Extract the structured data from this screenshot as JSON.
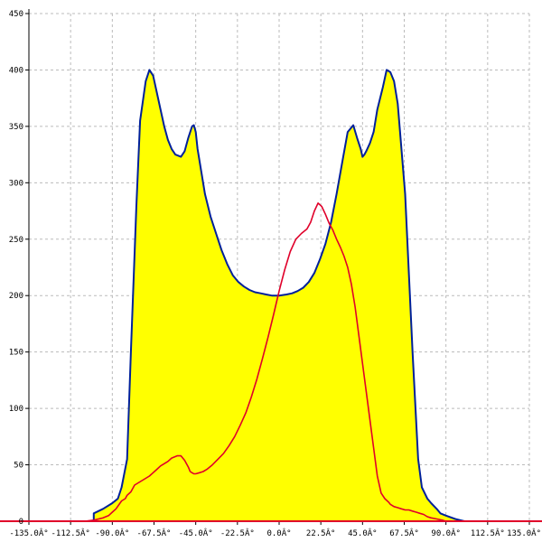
{
  "chart_data": {
    "type": "area",
    "xlim": [
      -135,
      135
    ],
    "ylim": [
      0,
      450
    ],
    "x_ticks": [
      -135,
      -112.5,
      -90,
      -67.5,
      -45,
      -22.5,
      0,
      22.5,
      45,
      67.5,
      90,
      112.5,
      135
    ],
    "x_tick_labels": [
      "-135.0Â°",
      "-112.5Â°",
      "-90.0Â°",
      "-67.5Â°",
      "-45.0Â°",
      "-22.5Â°",
      "0.0Â°",
      "22.5Â°",
      "45.0Â°",
      "67.5Â°",
      "90.0Â°",
      "112.5Â°",
      "135.0Â°"
    ],
    "y_ticks": [
      0,
      50,
      100,
      150,
      200,
      250,
      300,
      350,
      400,
      450
    ],
    "y_tick_labels": [
      "0",
      "50",
      "100",
      "150",
      "200",
      "250",
      "300",
      "350",
      "400",
      "450"
    ],
    "grid": true,
    "colors": {
      "fill": "#ffff00",
      "outline": "#00209a",
      "series2": "#e0002a",
      "baseline": "#e0002a"
    },
    "series": [
      {
        "x": [
          -100,
          -100,
          -95,
          -90,
          -87,
          -85,
          -82,
          -80,
          -77,
          -75,
          -72,
          -70,
          -68,
          -66,
          -64,
          -62,
          -60,
          -58,
          -56,
          -53,
          -51,
          -49,
          -47,
          -46,
          -45,
          -44,
          -42,
          -40,
          -37,
          -34,
          -31,
          -28,
          -25,
          -22,
          -19,
          -16,
          -13,
          -10,
          -7,
          -4,
          0,
          4,
          7,
          10,
          13,
          16,
          19,
          22,
          25,
          28,
          31,
          34,
          37,
          40,
          42,
          44,
          45,
          46,
          47,
          49,
          51,
          53,
          56,
          58,
          60,
          62,
          64,
          66,
          68,
          70,
          72,
          75,
          77,
          80,
          82,
          85,
          87,
          90,
          95,
          100,
          100
        ],
        "values": [
          0,
          7,
          11,
          16,
          20,
          30,
          55,
          150,
          280,
          355,
          390,
          400,
          395,
          380,
          365,
          350,
          338,
          330,
          325,
          323,
          328,
          340,
          350,
          351,
          345,
          330,
          310,
          290,
          270,
          255,
          240,
          228,
          218,
          212,
          208,
          205,
          203,
          202,
          201,
          200,
          200,
          201,
          202,
          204,
          207,
          212,
          220,
          232,
          246,
          265,
          290,
          318,
          345,
          351,
          340,
          330,
          323,
          325,
          328,
          335,
          345,
          365,
          385,
          400,
          398,
          390,
          370,
          330,
          290,
          220,
          150,
          55,
          30,
          20,
          16,
          11,
          7,
          5,
          2,
          0,
          0
        ]
      },
      {
        "x": [
          -105,
          -100,
          -95,
          -92,
          -90,
          -88,
          -85,
          -83,
          -82,
          -80,
          -78,
          -76,
          -74,
          -72,
          -70,
          -68,
          -66,
          -64,
          -62,
          -60,
          -58,
          -55,
          -53,
          -51,
          -49,
          -48,
          -47,
          -46,
          -45,
          -43,
          -41,
          -39,
          -36,
          -33,
          -30,
          -27,
          -24,
          -21,
          -18,
          -15,
          -12,
          -9,
          -6,
          -3,
          0,
          3,
          6,
          9,
          12,
          15,
          17,
          19,
          21,
          23,
          25,
          27,
          29,
          31,
          33,
          35,
          37,
          39,
          41,
          43,
          45,
          47,
          49,
          51,
          53,
          55,
          57,
          59,
          60,
          62,
          64,
          66,
          68,
          70,
          72,
          74,
          76,
          78,
          80,
          82,
          85,
          88,
          90,
          95,
          100
        ],
        "values": [
          0,
          1,
          3,
          5,
          8,
          11,
          18,
          20,
          23,
          26,
          32,
          34,
          36,
          38,
          40,
          43,
          46,
          49,
          51,
          53,
          56,
          58,
          58,
          54,
          48,
          44,
          43,
          42,
          42,
          43,
          44,
          46,
          50,
          55,
          60,
          67,
          75,
          85,
          96,
          110,
          126,
          144,
          163,
          183,
          204,
          223,
          239,
          250,
          255,
          259,
          265,
          275,
          282,
          279,
          272,
          264,
          258,
          250,
          243,
          235,
          225,
          210,
          190,
          165,
          140,
          115,
          90,
          65,
          40,
          25,
          20,
          17,
          15,
          13,
          12,
          11,
          10,
          10,
          9,
          8,
          7,
          6,
          4,
          3,
          2,
          1,
          0,
          0,
          0
        ]
      }
    ]
  }
}
